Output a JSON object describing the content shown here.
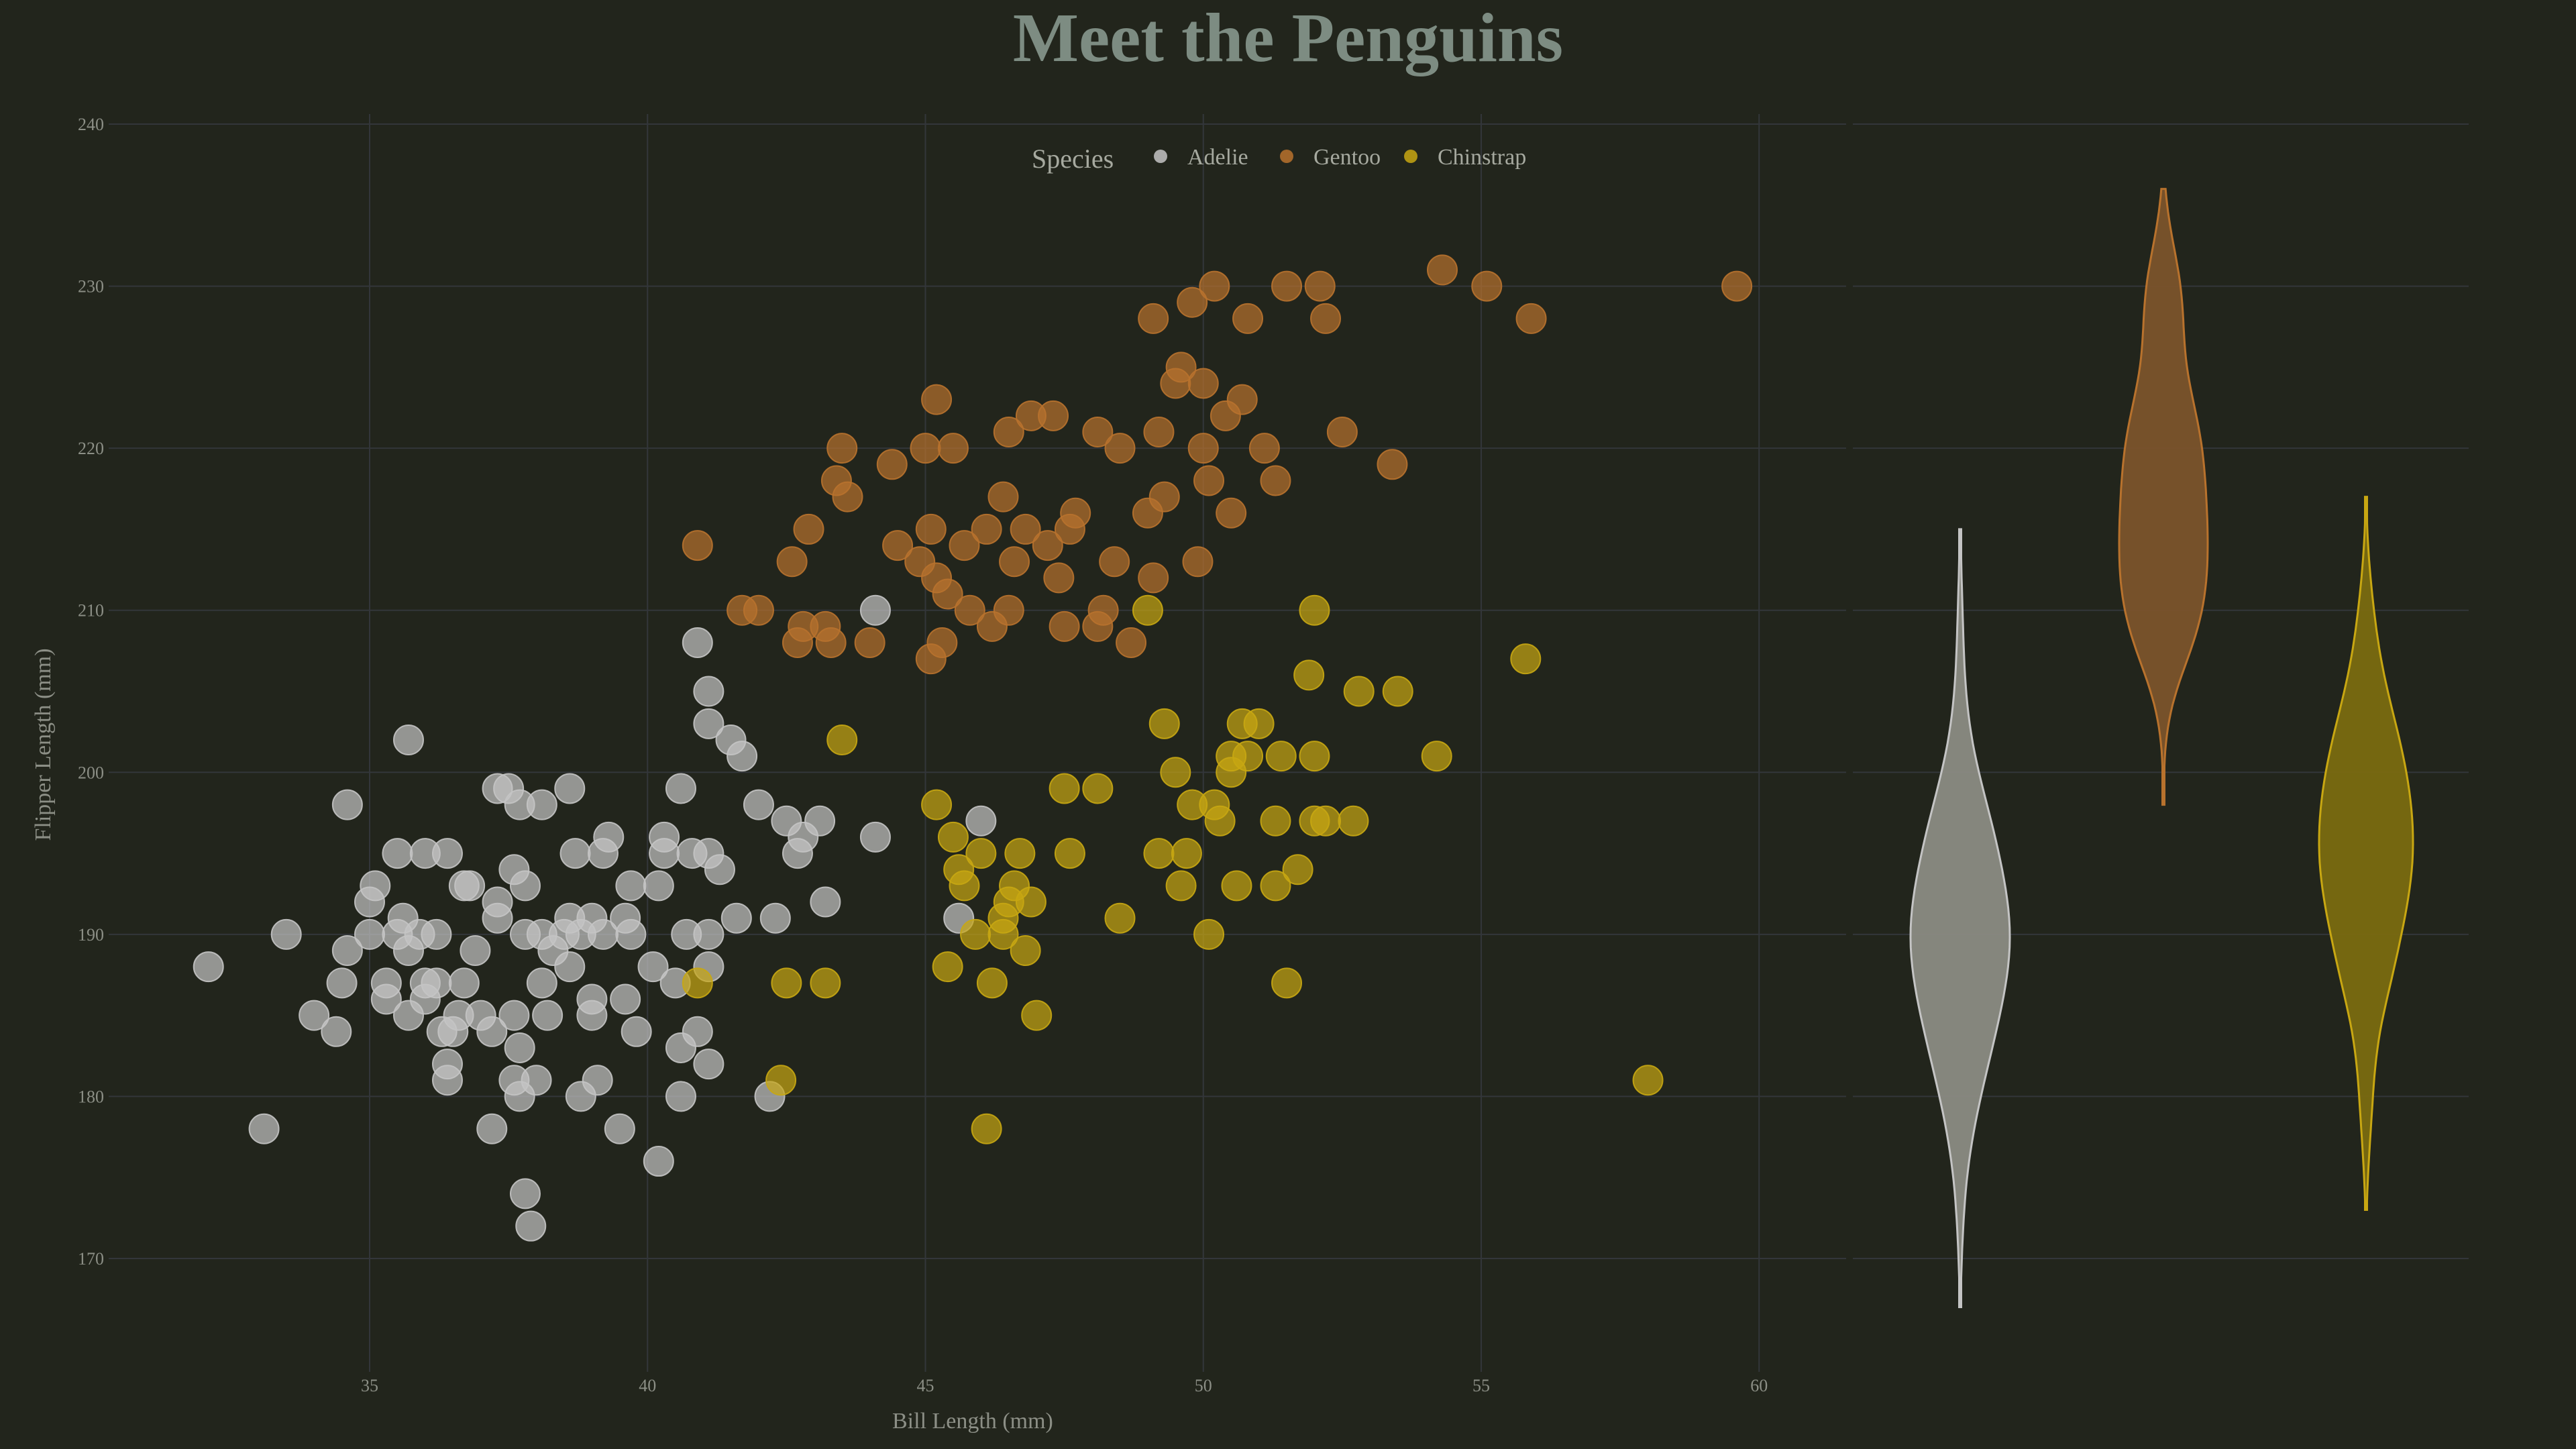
{
  "chart_data": {
    "type": "scatter",
    "title": "Meet the Penguins",
    "xlabel": "Bill Length (mm)",
    "ylabel": "Flipper Length (mm)",
    "xlim": [
      31,
      61.5
    ],
    "ylim": [
      165,
      240
    ],
    "xticks": [
      35,
      40,
      45,
      50,
      55,
      60
    ],
    "yticks": [
      170,
      180,
      190,
      200,
      210,
      220,
      230,
      240
    ],
    "grid": true,
    "legend": {
      "title": "Species",
      "position": "top-center",
      "entries": [
        "Adelie",
        "Gentoo",
        "Chinstrap"
      ]
    },
    "series": [
      {
        "name": "Adelie",
        "color": "#c4c4c4",
        "points": [
          [
            32.1,
            188
          ],
          [
            33.1,
            178
          ],
          [
            33.5,
            190
          ],
          [
            34.0,
            185
          ],
          [
            34.4,
            184
          ],
          [
            34.5,
            187
          ],
          [
            34.6,
            189
          ],
          [
            34.6,
            198
          ],
          [
            35.0,
            190
          ],
          [
            35.0,
            192
          ],
          [
            35.1,
            193
          ],
          [
            35.3,
            187
          ],
          [
            35.3,
            186
          ],
          [
            35.5,
            190
          ],
          [
            35.5,
            195
          ],
          [
            35.6,
            191
          ],
          [
            35.7,
            185
          ],
          [
            35.7,
            189
          ],
          [
            35.7,
            202
          ],
          [
            35.9,
            190
          ],
          [
            36.0,
            186
          ],
          [
            36.0,
            187
          ],
          [
            36.0,
            195
          ],
          [
            36.2,
            187
          ],
          [
            36.2,
            190
          ],
          [
            36.3,
            184
          ],
          [
            36.4,
            195
          ],
          [
            36.4,
            182
          ],
          [
            36.4,
            181
          ],
          [
            36.5,
            184
          ],
          [
            36.6,
            185
          ],
          [
            36.7,
            187
          ],
          [
            36.7,
            193
          ],
          [
            36.8,
            193
          ],
          [
            36.9,
            189
          ],
          [
            37.0,
            185
          ],
          [
            37.2,
            184
          ],
          [
            37.2,
            178
          ],
          [
            37.3,
            191
          ],
          [
            37.3,
            199
          ],
          [
            37.3,
            192
          ],
          [
            37.5,
            199
          ],
          [
            37.6,
            194
          ],
          [
            37.6,
            181
          ],
          [
            37.6,
            185
          ],
          [
            37.7,
            183
          ],
          [
            37.7,
            180
          ],
          [
            37.7,
            198
          ],
          [
            37.8,
            174
          ],
          [
            37.8,
            190
          ],
          [
            37.8,
            193
          ],
          [
            37.9,
            172
          ],
          [
            38.0,
            181
          ],
          [
            38.1,
            198
          ],
          [
            38.1,
            187
          ],
          [
            38.1,
            190
          ],
          [
            38.2,
            185
          ],
          [
            38.3,
            189
          ],
          [
            38.5,
            190
          ],
          [
            38.6,
            199
          ],
          [
            38.6,
            191
          ],
          [
            38.6,
            188
          ],
          [
            38.7,
            195
          ],
          [
            38.8,
            180
          ],
          [
            38.8,
            190
          ],
          [
            39.0,
            185
          ],
          [
            39.0,
            186
          ],
          [
            39.0,
            191
          ],
          [
            39.1,
            181
          ],
          [
            39.2,
            190
          ],
          [
            39.2,
            195
          ],
          [
            39.3,
            196
          ],
          [
            39.5,
            178
          ],
          [
            39.6,
            186
          ],
          [
            39.6,
            191
          ],
          [
            39.7,
            190
          ],
          [
            39.7,
            193
          ],
          [
            39.8,
            184
          ],
          [
            40.1,
            188
          ],
          [
            40.2,
            176
          ],
          [
            40.2,
            193
          ],
          [
            40.3,
            195
          ],
          [
            40.3,
            196
          ],
          [
            40.5,
            187
          ],
          [
            40.6,
            180
          ],
          [
            40.6,
            183
          ],
          [
            40.6,
            199
          ],
          [
            40.7,
            190
          ],
          [
            40.8,
            195
          ],
          [
            40.9,
            184
          ],
          [
            40.9,
            208
          ],
          [
            41.1,
            182
          ],
          [
            41.1,
            188
          ],
          [
            41.1,
            190
          ],
          [
            41.1,
            195
          ],
          [
            41.1,
            203
          ],
          [
            41.1,
            205
          ],
          [
            41.3,
            194
          ],
          [
            41.5,
            202
          ],
          [
            41.6,
            191
          ],
          [
            41.7,
            201
          ],
          [
            42.0,
            198
          ],
          [
            42.2,
            180
          ],
          [
            42.3,
            191
          ],
          [
            42.5,
            197
          ],
          [
            42.7,
            195
          ],
          [
            42.8,
            196
          ],
          [
            43.1,
            197
          ],
          [
            43.2,
            192
          ],
          [
            44.1,
            196
          ],
          [
            44.1,
            210
          ],
          [
            45.6,
            191
          ],
          [
            46.0,
            197
          ]
        ]
      },
      {
        "name": "Gentoo",
        "color": "#b8722d",
        "points": [
          [
            40.9,
            214
          ],
          [
            41.7,
            210
          ],
          [
            42.0,
            210
          ],
          [
            42.6,
            213
          ],
          [
            42.7,
            208
          ],
          [
            42.8,
            209
          ],
          [
            42.9,
            215
          ],
          [
            43.2,
            209
          ],
          [
            43.3,
            208
          ],
          [
            43.4,
            218
          ],
          [
            43.5,
            220
          ],
          [
            43.6,
            217
          ],
          [
            44.0,
            208
          ],
          [
            44.4,
            219
          ],
          [
            44.5,
            214
          ],
          [
            44.9,
            213
          ],
          [
            45.0,
            220
          ],
          [
            45.1,
            207
          ],
          [
            45.1,
            215
          ],
          [
            45.2,
            212
          ],
          [
            45.2,
            223
          ],
          [
            45.3,
            208
          ],
          [
            45.4,
            211
          ],
          [
            45.5,
            220
          ],
          [
            45.7,
            214
          ],
          [
            45.8,
            210
          ],
          [
            46.1,
            215
          ],
          [
            46.2,
            209
          ],
          [
            46.4,
            217
          ],
          [
            46.5,
            210
          ],
          [
            46.5,
            221
          ],
          [
            46.6,
            213
          ],
          [
            46.8,
            215
          ],
          [
            46.9,
            222
          ],
          [
            47.2,
            214
          ],
          [
            47.3,
            222
          ],
          [
            47.4,
            212
          ],
          [
            47.5,
            209
          ],
          [
            47.6,
            215
          ],
          [
            47.7,
            216
          ],
          [
            48.1,
            209
          ],
          [
            48.1,
            221
          ],
          [
            48.2,
            210
          ],
          [
            48.4,
            213
          ],
          [
            48.5,
            220
          ],
          [
            48.7,
            208
          ],
          [
            49.0,
            216
          ],
          [
            49.1,
            212
          ],
          [
            49.1,
            228
          ],
          [
            49.2,
            221
          ],
          [
            49.3,
            217
          ],
          [
            49.5,
            224
          ],
          [
            49.6,
            225
          ],
          [
            49.8,
            229
          ],
          [
            49.9,
            213
          ],
          [
            50.0,
            220
          ],
          [
            50.0,
            224
          ],
          [
            50.1,
            218
          ],
          [
            50.2,
            230
          ],
          [
            50.4,
            222
          ],
          [
            50.5,
            216
          ],
          [
            50.7,
            223
          ],
          [
            50.8,
            228
          ],
          [
            51.1,
            220
          ],
          [
            51.3,
            218
          ],
          [
            51.5,
            230
          ],
          [
            52.1,
            230
          ],
          [
            52.2,
            228
          ],
          [
            52.5,
            221
          ],
          [
            53.4,
            219
          ],
          [
            54.3,
            231
          ],
          [
            55.1,
            230
          ],
          [
            55.9,
            228
          ],
          [
            59.6,
            230
          ]
        ]
      },
      {
        "name": "Chinstrap",
        "color": "#c8a712",
        "points": [
          [
            40.9,
            187
          ],
          [
            42.4,
            181
          ],
          [
            42.5,
            187
          ],
          [
            43.2,
            187
          ],
          [
            43.5,
            202
          ],
          [
            45.2,
            198
          ],
          [
            45.4,
            188
          ],
          [
            45.5,
            196
          ],
          [
            45.6,
            194
          ],
          [
            45.7,
            193
          ],
          [
            45.9,
            190
          ],
          [
            46.0,
            195
          ],
          [
            46.1,
            178
          ],
          [
            46.2,
            187
          ],
          [
            46.4,
            190
          ],
          [
            46.4,
            191
          ],
          [
            46.5,
            192
          ],
          [
            46.6,
            193
          ],
          [
            46.7,
            195
          ],
          [
            46.8,
            189
          ],
          [
            46.9,
            192
          ],
          [
            47.0,
            185
          ],
          [
            47.5,
            199
          ],
          [
            47.6,
            195
          ],
          [
            48.1,
            199
          ],
          [
            48.5,
            191
          ],
          [
            49.0,
            210
          ],
          [
            49.2,
            195
          ],
          [
            49.3,
            203
          ],
          [
            49.5,
            200
          ],
          [
            49.6,
            193
          ],
          [
            49.7,
            195
          ],
          [
            49.8,
            198
          ],
          [
            50.1,
            190
          ],
          [
            50.2,
            198
          ],
          [
            50.3,
            197
          ],
          [
            50.5,
            200
          ],
          [
            50.5,
            201
          ],
          [
            50.6,
            193
          ],
          [
            50.7,
            203
          ],
          [
            50.8,
            201
          ],
          [
            51.0,
            203
          ],
          [
            51.3,
            193
          ],
          [
            51.3,
            197
          ],
          [
            51.4,
            201
          ],
          [
            51.5,
            187
          ],
          [
            51.7,
            194
          ],
          [
            51.9,
            206
          ],
          [
            52.0,
            197
          ],
          [
            52.0,
            201
          ],
          [
            52.0,
            210
          ],
          [
            52.2,
            197
          ],
          [
            52.7,
            197
          ],
          [
            52.8,
            205
          ],
          [
            53.5,
            205
          ],
          [
            54.2,
            201
          ],
          [
            55.8,
            207
          ],
          [
            58.0,
            181
          ]
        ]
      }
    ],
    "violins": [
      {
        "name": "Adelie",
        "color": "#c4c4c4",
        "fill": "#8b8b83",
        "min": 172,
        "max": 210,
        "median": 190
      },
      {
        "name": "Gentoo",
        "color": "#b8722d",
        "fill": "#7b532b",
        "min": 203,
        "max": 231,
        "median": 216
      },
      {
        "name": "Chinstrap",
        "color": "#c8a712",
        "fill": "#7a6a10",
        "min": 178,
        "max": 212,
        "median": 196
      }
    ]
  }
}
